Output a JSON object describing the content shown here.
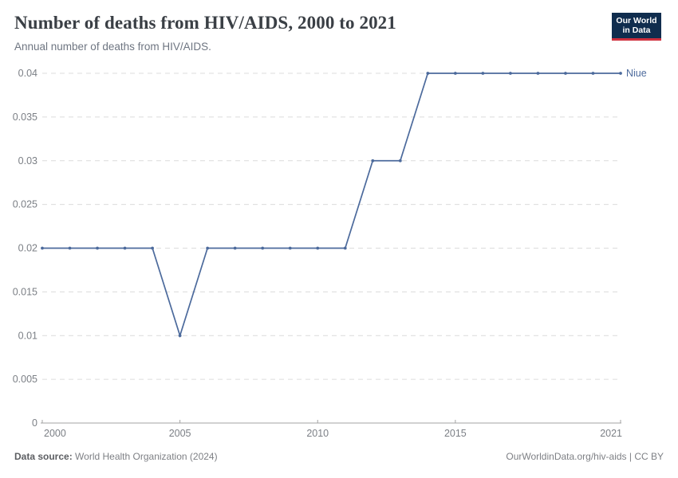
{
  "logo": {
    "line1": "Our World",
    "line2": "in Data",
    "bg_color": "#102d4e",
    "stripe_color": "#cf303e"
  },
  "chart_data": {
    "type": "line",
    "title": "Number of deaths from HIV/AIDS, 2000 to 2021",
    "subtitle": "Annual number of deaths from HIV/AIDS.",
    "xlabel": "",
    "ylabel": "",
    "x": [
      2000,
      2001,
      2002,
      2003,
      2004,
      2005,
      2006,
      2007,
      2008,
      2009,
      2010,
      2011,
      2012,
      2013,
      2014,
      2015,
      2016,
      2017,
      2018,
      2019,
      2020,
      2021
    ],
    "series": [
      {
        "name": "Niue",
        "color": "#4C6A9C",
        "values": [
          0.02,
          0.02,
          0.02,
          0.02,
          0.02,
          0.01,
          0.02,
          0.02,
          0.02,
          0.02,
          0.02,
          0.02,
          0.03,
          0.03,
          0.04,
          0.04,
          0.04,
          0.04,
          0.04,
          0.04,
          0.04,
          0.04
        ]
      }
    ],
    "xlim": [
      2000,
      2021
    ],
    "ylim": [
      0,
      0.04
    ],
    "x_ticks": [
      {
        "value": 2000,
        "label": "2000"
      },
      {
        "value": 2005,
        "label": "2005"
      },
      {
        "value": 2010,
        "label": "2010"
      },
      {
        "value": 2015,
        "label": "2015"
      },
      {
        "value": 2021,
        "label": "2021"
      }
    ],
    "y_ticks": [
      {
        "value": 0,
        "label": "0"
      },
      {
        "value": 0.005,
        "label": "0.005"
      },
      {
        "value": 0.01,
        "label": "0.01"
      },
      {
        "value": 0.015,
        "label": "0.015"
      },
      {
        "value": 0.02,
        "label": "0.02"
      },
      {
        "value": 0.025,
        "label": "0.025"
      },
      {
        "value": 0.03,
        "label": "0.03"
      },
      {
        "value": 0.035,
        "label": "0.035"
      },
      {
        "value": 0.04,
        "label": "0.04"
      }
    ],
    "grid": true,
    "legend_position": "end-of-line",
    "colors": {
      "grid": "#dcdcdc",
      "axis": "#a3a3a3",
      "tick_label": "#7b7f85"
    }
  },
  "footer": {
    "source_label": "Data source:",
    "source_text": "World Health Organization (2024)",
    "credit": "OurWorldinData.org/hiv-aids | CC BY"
  }
}
